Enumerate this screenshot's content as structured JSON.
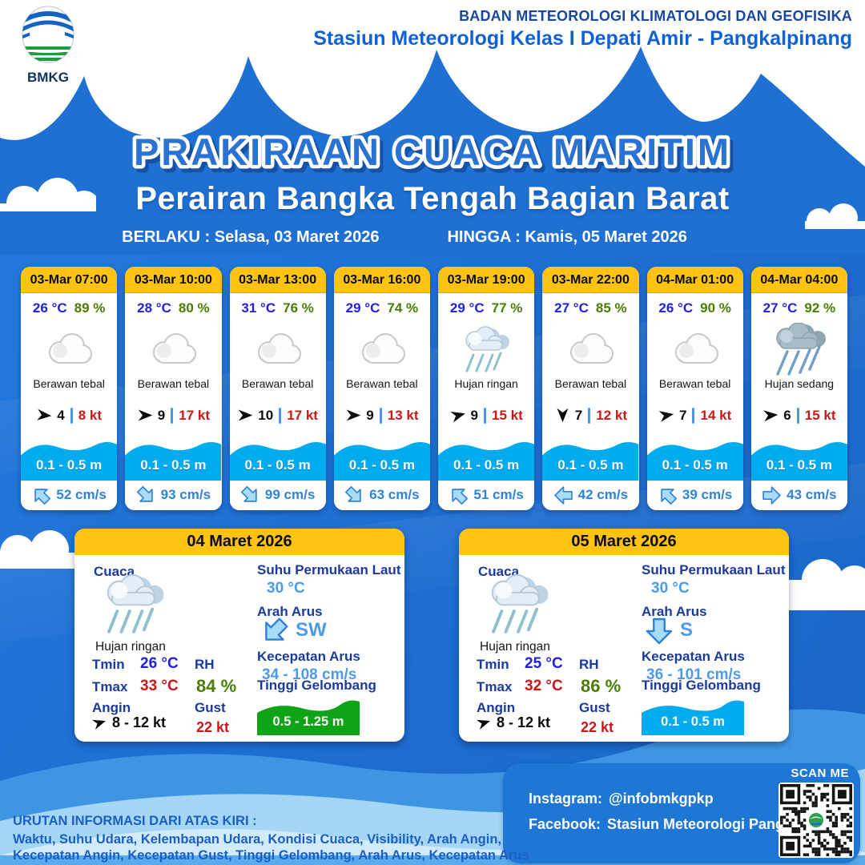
{
  "colors": {
    "bg_blue": "#1E6FD2",
    "accent_yellow": "#FFC314",
    "band_cyan": "#00ACEE",
    "temp_blue": "#1F1FE8",
    "humidity_green": "#4A7D03",
    "alert_red": "#CF1616",
    "navy_label": "#1B3A9E",
    "current_blue": "#2E82D8",
    "wave_green": "#0FA418"
  },
  "header": {
    "logo_text": "BMKG",
    "org_line1": "BADAN METEOROLOGI KLIMATOLOGI DAN GEOFISIKA",
    "org_line2": "Stasiun Meteorologi Kelas I Depati Amir - Pangkalpinang"
  },
  "title": {
    "main": "PRAKIRAAN CUACA MARITIM",
    "subtitle": "Perairan Bangka Tengah Bagian Barat",
    "berlaku_label": "BERLAKU :",
    "berlaku_value": "Selasa, 03 Maret 2026",
    "hingga_label": "HINGGA :",
    "hingga_value": "Kamis, 05 Maret 2026"
  },
  "hourly_cards": [
    {
      "time": "03-Mar 07:00",
      "temp": "26 °C",
      "humidity": "89 %",
      "icon": "cloud",
      "condition": "Berawan tebal",
      "visibility": "4",
      "wind_speed": "8 kt",
      "wind_dir_deg": 5,
      "wave_height": "0.1 - 0.5 m",
      "current_dir": "NW",
      "current_speed": "52 cm/s"
    },
    {
      "time": "03-Mar 10:00",
      "temp": "28 °C",
      "humidity": "80 %",
      "icon": "cloud",
      "condition": "Berawan tebal",
      "visibility": "9",
      "wind_speed": "17 kt",
      "wind_dir_deg": 0,
      "wave_height": "0.1 - 0.5 m",
      "current_dir": "SE",
      "current_speed": "93 cm/s"
    },
    {
      "time": "03-Mar 13:00",
      "temp": "31 °C",
      "humidity": "76 %",
      "icon": "cloud",
      "condition": "Berawan tebal",
      "visibility": "10",
      "wind_speed": "17 kt",
      "wind_dir_deg": 0,
      "wave_height": "0.1 - 0.5 m",
      "current_dir": "SE",
      "current_speed": "99 cm/s"
    },
    {
      "time": "03-Mar 16:00",
      "temp": "29 °C",
      "humidity": "74 %",
      "icon": "cloud",
      "condition": "Berawan tebal",
      "visibility": "9",
      "wind_speed": "13 kt",
      "wind_dir_deg": 0,
      "wave_height": "0.1 - 0.5 m",
      "current_dir": "SE",
      "current_speed": "63 cm/s"
    },
    {
      "time": "03-Mar 19:00",
      "temp": "29 °C",
      "humidity": "77 %",
      "icon": "rain-light",
      "condition": "Hujan ringan",
      "visibility": "9",
      "wind_speed": "15 kt",
      "wind_dir_deg": -15,
      "wave_height": "0.1 - 0.5 m",
      "current_dir": "NW",
      "current_speed": "51 cm/s"
    },
    {
      "time": "03-Mar 22:00",
      "temp": "27 °C",
      "humidity": "85 %",
      "icon": "cloud",
      "condition": "Berawan tebal",
      "visibility": "7",
      "wind_speed": "12 kt",
      "wind_dir_deg": 90,
      "wave_height": "0.1 - 0.5 m",
      "current_dir": "W",
      "current_speed": "42 cm/s"
    },
    {
      "time": "04-Mar 01:00",
      "temp": "26 °C",
      "humidity": "90 %",
      "icon": "cloud",
      "condition": "Berawan tebal",
      "visibility": "7",
      "wind_speed": "14 kt",
      "wind_dir_deg": -10,
      "wave_height": "0.1 - 0.5 m",
      "current_dir": "NW",
      "current_speed": "39 cm/s"
    },
    {
      "time": "04-Mar 04:00",
      "temp": "27 °C",
      "humidity": "92 %",
      "icon": "rain-medium",
      "condition": "Hujan sedang",
      "visibility": "6",
      "wind_speed": "15 kt",
      "wind_dir_deg": -5,
      "wave_height": "0.1 - 0.5 m",
      "current_dir": "E",
      "current_speed": "43 cm/s"
    }
  ],
  "daily_labels": {
    "cuaca": "Cuaca",
    "tmin": "Tmin",
    "tmax": "Tmax",
    "rh": "RH",
    "angin": "Angin",
    "gust": "Gust",
    "sst": "Suhu Permukaan Laut",
    "arah_arus": "Arah Arus",
    "kecepatan_arus": "Kecepatan Arus",
    "tinggi_gelombang": "Tinggi Gelombang"
  },
  "daily_cards": [
    {
      "date": "04 Maret 2026",
      "icon": "rain-light",
      "condition": "Hujan ringan",
      "tmin": "26 °C",
      "tmax": "33 °C",
      "rh": "84 %",
      "wind": "8 - 12 kt",
      "gust": "22 kt",
      "sea_surface_temp": "30 °C",
      "current_dir": "SW",
      "current_speed": "34 - 108 cm/s",
      "wave_height": "0.5 - 1.25 m",
      "wave_color": "#0FA418"
    },
    {
      "date": "05 Maret 2026",
      "icon": "rain-light",
      "condition": "Hujan ringan",
      "tmin": "25 °C",
      "tmax": "32 °C",
      "rh": "86 %",
      "wind": "8 - 12 kt",
      "gust": "22 kt",
      "sea_surface_temp": "30 °C",
      "current_dir": "S",
      "current_speed": "36 - 101 cm/s",
      "wave_height": "0.1 - 0.5 m",
      "wave_color": "#00ACEE"
    }
  ],
  "footer": {
    "order_title": "URUTAN INFORMASI DARI ATAS KIRI :",
    "order_line1": "Waktu, Suhu Udara, Kelembapan Udara, Kondisi Cuaca, Visibility, Arah Angin,",
    "order_line2": "Kecepatan Angin, Kecepatan Gust, Tinggi Gelombang, Arah Arus, Kecepatan Arus",
    "instagram_label": "Instagram:",
    "instagram_value": "@infobmkgpkp",
    "facebook_label": "Facebook:",
    "facebook_value": "Stasiun  Meteorologi  Pangkalpinang",
    "scan_label": "SCAN ME"
  }
}
